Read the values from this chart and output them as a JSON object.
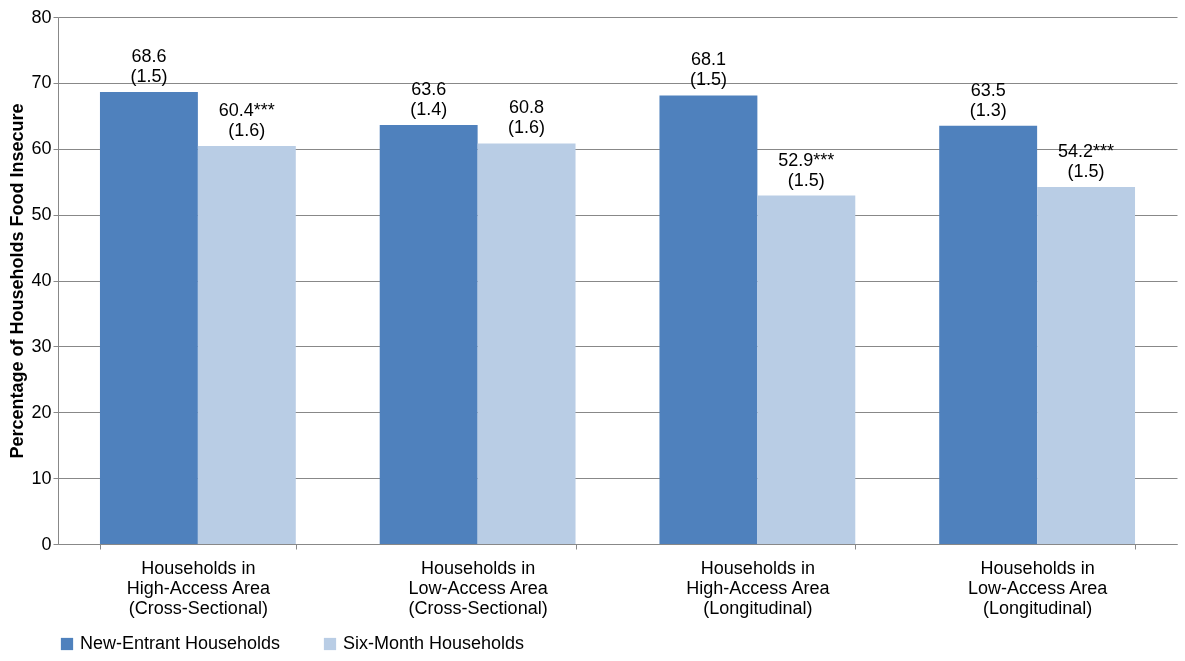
{
  "chart_data": {
    "type": "bar",
    "ylabel": "Percentage of Households Food Insecure",
    "categories": [
      "Households in\nHigh-Access Area\n(Cross-Sectional)",
      "Households in\nLow-Access Area\n(Cross-Sectional)",
      "Households in\nHigh-Access Area\n(Longitudinal)",
      "Households in\nLow-Access Area\n(Longitudinal)"
    ],
    "series": [
      {
        "name": "New-Entrant Households",
        "color": "#4f81bd",
        "values": [
          68.6,
          63.6,
          68.1,
          63.5
        ],
        "value_labels": [
          "68.6\n(1.5)",
          "63.6\n(1.4)",
          "68.1\n(1.5)",
          "63.5\n(1.3)"
        ]
      },
      {
        "name": "Six-Month Households",
        "color": "#b9cde5",
        "values": [
          60.4,
          60.8,
          52.9,
          54.2
        ],
        "value_labels": [
          "60.4***\n(1.6)",
          "60.8\n(1.6)",
          "52.9***\n(1.5)",
          "54.2***\n(1.5)"
        ]
      }
    ],
    "ylim": [
      0,
      80
    ],
    "yticks": [
      0,
      10,
      20,
      30,
      40,
      50,
      60,
      70,
      80
    ],
    "grid": "y",
    "legend": "bottom"
  }
}
